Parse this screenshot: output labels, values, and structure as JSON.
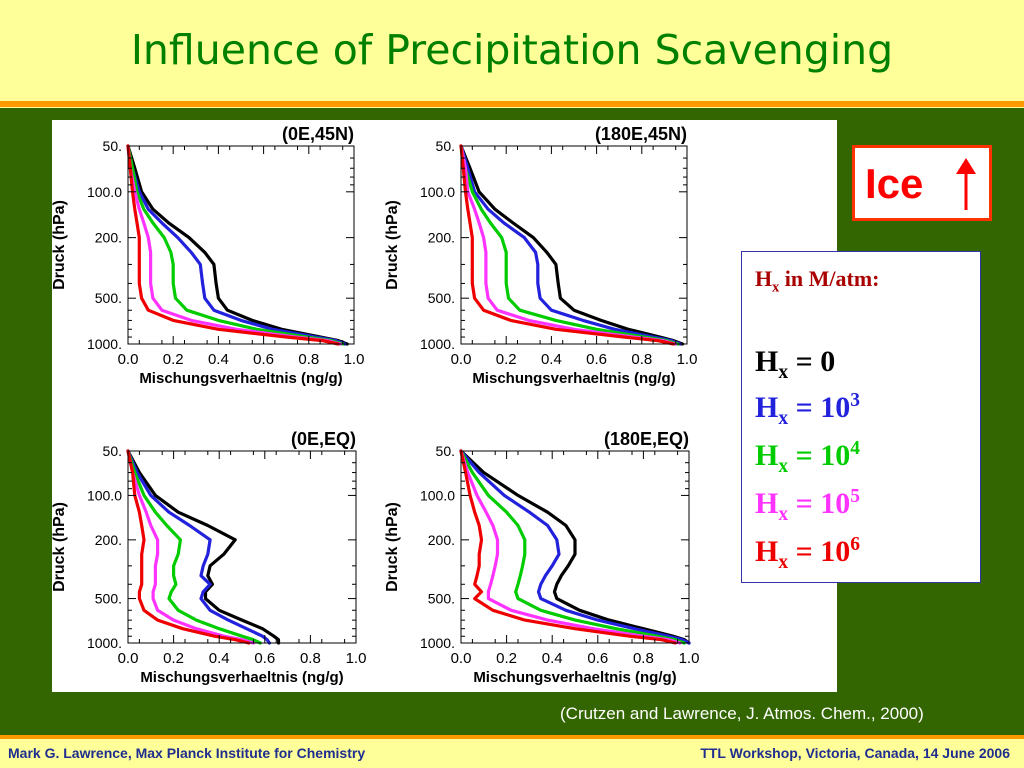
{
  "slide": {
    "title": "Influence of Precipitation Scavenging",
    "citation": "(Crutzen and Lawrence, J. Atmos. Chem., 2000)",
    "footer_left": "Mark G. Lawrence, Max Planck Institute for Chemistry",
    "footer_right": "TTL Workshop, Victoria, Canada, 14 June 2006",
    "ice_label": "Ice",
    "ice_arrow_icon": "up-arrow-icon"
  },
  "legend": {
    "header": {
      "base": "H",
      "sub": "x",
      "rest": " in M/atm:"
    },
    "entries": [
      {
        "base": "H",
        "sub": "x",
        "eq": " = ",
        "value": "0",
        "exp": "",
        "color": "#000000"
      },
      {
        "base": "H",
        "sub": "x",
        "eq": " = ",
        "value": "10",
        "exp": "3",
        "color": "#2222dd"
      },
      {
        "base": "H",
        "sub": "x",
        "eq": " = ",
        "value": "10",
        "exp": "4",
        "color": "#00cc00"
      },
      {
        "base": "H",
        "sub": "x",
        "eq": " = ",
        "value": "10",
        "exp": "5",
        "color": "#ff33ff"
      },
      {
        "base": "H",
        "sub": "x",
        "eq": " = ",
        "value": "10",
        "exp": "6",
        "color": "#ee0000"
      }
    ]
  },
  "chart_data": [
    {
      "type": "line",
      "title": "(0E,45N)",
      "xlabel": "Mischungsverhaeltnis (ng/g)",
      "ylabel": "Druck (hPa)",
      "xlim": [
        0,
        1.0
      ],
      "ylim": [
        1000,
        50
      ],
      "y_scale": "log",
      "x_ticks": [
        "0.0",
        "0.2",
        "0.4",
        "0.6",
        "0.8",
        "1.0"
      ],
      "y_ticks": [
        {
          "value": 50,
          "label": "50."
        },
        {
          "value": 100,
          "label": "100.0"
        },
        {
          "value": 200,
          "label": "200."
        },
        {
          "value": 500,
          "label": "500."
        },
        {
          "value": 1000,
          "label": "1000."
        }
      ],
      "y": [
        50,
        70,
        100,
        130,
        160,
        200,
        250,
        300,
        400,
        500,
        600,
        700,
        800,
        900,
        950,
        1000
      ],
      "series": [
        {
          "color": "#000000",
          "values": [
            0.0,
            0.03,
            0.06,
            0.11,
            0.18,
            0.27,
            0.34,
            0.38,
            0.39,
            0.4,
            0.44,
            0.55,
            0.68,
            0.85,
            0.93,
            0.97
          ]
        },
        {
          "color": "#2222dd",
          "values": [
            0.0,
            0.02,
            0.05,
            0.09,
            0.15,
            0.22,
            0.28,
            0.32,
            0.33,
            0.34,
            0.38,
            0.5,
            0.64,
            0.83,
            0.92,
            0.96
          ]
        },
        {
          "color": "#00cc00",
          "values": [
            0.0,
            0.02,
            0.04,
            0.07,
            0.11,
            0.16,
            0.19,
            0.2,
            0.2,
            0.21,
            0.26,
            0.4,
            0.57,
            0.79,
            0.9,
            0.95
          ]
        },
        {
          "color": "#ff33ff",
          "values": [
            0.0,
            0.01,
            0.03,
            0.05,
            0.07,
            0.09,
            0.1,
            0.1,
            0.1,
            0.11,
            0.15,
            0.28,
            0.48,
            0.74,
            0.88,
            0.94
          ]
        },
        {
          "color": "#ee0000",
          "values": [
            0.0,
            0.01,
            0.02,
            0.03,
            0.04,
            0.05,
            0.05,
            0.05,
            0.05,
            0.06,
            0.09,
            0.2,
            0.4,
            0.7,
            0.86,
            0.93
          ]
        }
      ]
    },
    {
      "type": "line",
      "title": "(180E,45N)",
      "xlabel": "Mischungsverhaeltnis (ng/g)",
      "ylabel": "Druck (hPa)",
      "xlim": [
        0,
        1.0
      ],
      "ylim": [
        1000,
        50
      ],
      "y_scale": "log",
      "x_ticks": [
        "0.0",
        "0.2",
        "0.4",
        "0.6",
        "0.8",
        "1.0"
      ],
      "y_ticks": [
        {
          "value": 50,
          "label": "50."
        },
        {
          "value": 100,
          "label": "100.0"
        },
        {
          "value": 200,
          "label": "200."
        },
        {
          "value": 500,
          "label": "500."
        },
        {
          "value": 1000,
          "label": "1000."
        }
      ],
      "y": [
        50,
        70,
        100,
        130,
        160,
        200,
        250,
        300,
        400,
        500,
        600,
        700,
        800,
        900,
        950,
        1000
      ],
      "series": [
        {
          "color": "#000000",
          "values": [
            0.0,
            0.04,
            0.08,
            0.15,
            0.23,
            0.32,
            0.38,
            0.42,
            0.43,
            0.44,
            0.5,
            0.62,
            0.74,
            0.88,
            0.94,
            0.98
          ]
        },
        {
          "color": "#2222dd",
          "values": [
            0.0,
            0.03,
            0.06,
            0.12,
            0.19,
            0.28,
            0.33,
            0.34,
            0.34,
            0.35,
            0.4,
            0.54,
            0.68,
            0.85,
            0.93,
            0.97
          ]
        },
        {
          "color": "#00cc00",
          "values": [
            0.0,
            0.02,
            0.05,
            0.09,
            0.13,
            0.18,
            0.2,
            0.2,
            0.2,
            0.21,
            0.26,
            0.42,
            0.6,
            0.81,
            0.91,
            0.96
          ]
        },
        {
          "color": "#ff33ff",
          "values": [
            0.0,
            0.02,
            0.03,
            0.06,
            0.08,
            0.1,
            0.11,
            0.11,
            0.11,
            0.12,
            0.16,
            0.3,
            0.5,
            0.76,
            0.89,
            0.95
          ]
        },
        {
          "color": "#ee0000",
          "values": [
            0.0,
            0.01,
            0.02,
            0.03,
            0.04,
            0.05,
            0.05,
            0.05,
            0.05,
            0.06,
            0.1,
            0.22,
            0.42,
            0.72,
            0.87,
            0.94
          ]
        }
      ]
    },
    {
      "type": "line",
      "title": "(0E,EQ)",
      "xlabel": "Mischungsverhaeltnis (ng/g)",
      "ylabel": "Druck (hPa)",
      "xlim": [
        0,
        1.0
      ],
      "ylim": [
        1000,
        50
      ],
      "y_scale": "log",
      "x_ticks": [
        "0.0",
        "0.2",
        "0.4",
        "0.6",
        "0.8",
        "1.0"
      ],
      "y_ticks": [
        {
          "value": 50,
          "label": "50."
        },
        {
          "value": 100,
          "label": "100.0"
        },
        {
          "value": 200,
          "label": "200."
        },
        {
          "value": 500,
          "label": "500."
        },
        {
          "value": 1000,
          "label": "1000."
        }
      ],
      "y": [
        50,
        70,
        100,
        130,
        160,
        200,
        250,
        300,
        350,
        400,
        450,
        500,
        600,
        700,
        800,
        900,
        950,
        1000
      ],
      "series": [
        {
          "color": "#000000",
          "values": [
            0.0,
            0.05,
            0.12,
            0.22,
            0.35,
            0.47,
            0.42,
            0.36,
            0.35,
            0.37,
            0.34,
            0.34,
            0.4,
            0.5,
            0.59,
            0.64,
            0.66,
            0.66
          ]
        },
        {
          "color": "#2222dd",
          "values": [
            0.0,
            0.04,
            0.1,
            0.18,
            0.27,
            0.36,
            0.35,
            0.33,
            0.32,
            0.36,
            0.33,
            0.32,
            0.36,
            0.44,
            0.52,
            0.59,
            0.61,
            0.62
          ]
        },
        {
          "color": "#00cc00",
          "values": [
            0.0,
            0.03,
            0.07,
            0.12,
            0.17,
            0.23,
            0.22,
            0.2,
            0.2,
            0.21,
            0.19,
            0.18,
            0.22,
            0.3,
            0.4,
            0.5,
            0.55,
            0.58
          ]
        },
        {
          "color": "#ff33ff",
          "values": [
            0.0,
            0.02,
            0.05,
            0.08,
            0.1,
            0.13,
            0.13,
            0.12,
            0.12,
            0.12,
            0.11,
            0.11,
            0.13,
            0.2,
            0.3,
            0.42,
            0.5,
            0.55
          ]
        },
        {
          "color": "#ee0000",
          "values": [
            0.0,
            0.02,
            0.03,
            0.05,
            0.06,
            0.07,
            0.06,
            0.06,
            0.06,
            0.06,
            0.05,
            0.05,
            0.07,
            0.13,
            0.24,
            0.38,
            0.47,
            0.53
          ]
        }
      ]
    },
    {
      "type": "line",
      "title": "(180E,EQ)",
      "xlabel": "Mischungsverhaeltnis (ng/g)",
      "ylabel": "Druck (hPa)",
      "xlim": [
        0,
        1.0
      ],
      "ylim": [
        1000,
        50
      ],
      "y_scale": "log",
      "x_ticks": [
        "0.0",
        "0.2",
        "0.4",
        "0.6",
        "0.8",
        "1.0"
      ],
      "y_ticks": [
        {
          "value": 50,
          "label": "50."
        },
        {
          "value": 100,
          "label": "100.0"
        },
        {
          "value": 200,
          "label": "200."
        },
        {
          "value": 500,
          "label": "500."
        },
        {
          "value": 1000,
          "label": "1000."
        }
      ],
      "y": [
        50,
        70,
        100,
        130,
        160,
        200,
        250,
        300,
        350,
        400,
        450,
        500,
        600,
        700,
        800,
        900,
        950,
        1000
      ],
      "series": [
        {
          "color": "#000000",
          "values": [
            0.0,
            0.1,
            0.25,
            0.38,
            0.46,
            0.5,
            0.5,
            0.47,
            0.44,
            0.42,
            0.41,
            0.42,
            0.52,
            0.65,
            0.8,
            0.93,
            0.98,
            1.0
          ]
        },
        {
          "color": "#2222dd",
          "values": [
            0.0,
            0.08,
            0.19,
            0.3,
            0.38,
            0.42,
            0.43,
            0.4,
            0.37,
            0.35,
            0.34,
            0.35,
            0.46,
            0.6,
            0.76,
            0.91,
            0.97,
            1.0
          ]
        },
        {
          "color": "#00cc00",
          "values": [
            0.0,
            0.05,
            0.12,
            0.2,
            0.25,
            0.28,
            0.28,
            0.27,
            0.26,
            0.25,
            0.24,
            0.25,
            0.35,
            0.5,
            0.68,
            0.86,
            0.94,
            0.98
          ]
        },
        {
          "color": "#ff33ff",
          "values": [
            0.0,
            0.03,
            0.07,
            0.11,
            0.14,
            0.16,
            0.16,
            0.15,
            0.14,
            0.13,
            0.12,
            0.12,
            0.22,
            0.38,
            0.58,
            0.8,
            0.91,
            0.96
          ]
        },
        {
          "color": "#ee0000",
          "values": [
            0.0,
            0.02,
            0.04,
            0.06,
            0.08,
            0.09,
            0.08,
            0.08,
            0.07,
            0.06,
            0.09,
            0.06,
            0.14,
            0.28,
            0.5,
            0.74,
            0.88,
            0.94
          ]
        }
      ]
    }
  ]
}
